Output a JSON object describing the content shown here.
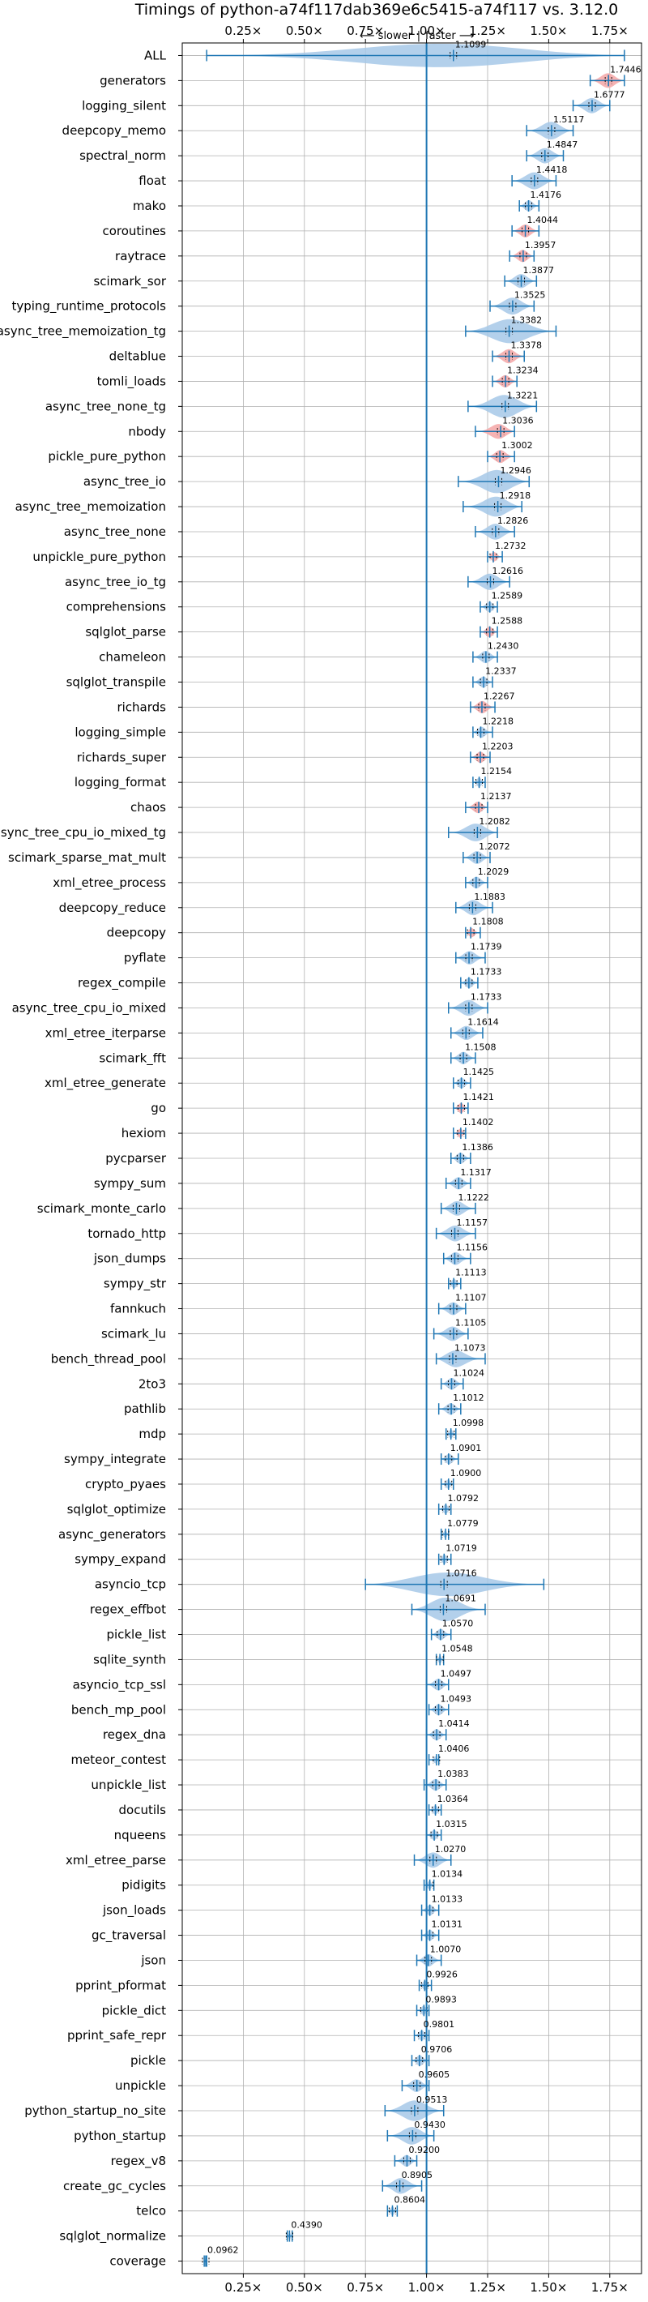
{
  "chart_data": {
    "type": "violin",
    "title": "Timings of python-a74f117dab369e6c5415-a74f117 vs. 3.12.0",
    "annotation_left": "⟵ slower",
    "annotation_sep": "|",
    "annotation_right": "faster ⟶",
    "xlim": [
      0.0,
      1.88
    ],
    "xticks": [
      0.25,
      0.5,
      0.75,
      1.0,
      1.25,
      1.5,
      1.75
    ],
    "xtick_labels": [
      "0.25×",
      "0.50×",
      "0.75×",
      "1.00×",
      "1.25×",
      "1.50×",
      "1.75×"
    ],
    "reference_line": 1.0,
    "grid": true,
    "colors": {
      "blue": "#1f77b4",
      "violin_blue": "#a6c8e8",
      "violin_red": "#f4a6a6"
    },
    "categories": [
      "ALL",
      "generators",
      "logging_silent",
      "deepcopy_memo",
      "spectral_norm",
      "float",
      "mako",
      "coroutines",
      "raytrace",
      "scimark_sor",
      "typing_runtime_protocols",
      "async_tree_memoization_tg",
      "deltablue",
      "tomli_loads",
      "async_tree_none_tg",
      "nbody",
      "pickle_pure_python",
      "async_tree_io",
      "async_tree_memoization",
      "async_tree_none",
      "unpickle_pure_python",
      "async_tree_io_tg",
      "comprehensions",
      "sqlglot_parse",
      "chameleon",
      "sqlglot_transpile",
      "richards",
      "logging_simple",
      "richards_super",
      "logging_format",
      "chaos",
      "async_tree_cpu_io_mixed_tg",
      "scimark_sparse_mat_mult",
      "xml_etree_process",
      "deepcopy_reduce",
      "deepcopy",
      "pyflate",
      "regex_compile",
      "async_tree_cpu_io_mixed",
      "xml_etree_iterparse",
      "scimark_fft",
      "xml_etree_generate",
      "go",
      "hexiom",
      "pycparser",
      "sympy_sum",
      "scimark_monte_carlo",
      "tornado_http",
      "json_dumps",
      "sympy_str",
      "fannkuch",
      "scimark_lu",
      "bench_thread_pool",
      "2to3",
      "pathlib",
      "mdp",
      "sympy_integrate",
      "crypto_pyaes",
      "sqlglot_optimize",
      "async_generators",
      "sympy_expand",
      "asyncio_tcp",
      "regex_effbot",
      "pickle_list",
      "sqlite_synth",
      "asyncio_tcp_ssl",
      "bench_mp_pool",
      "regex_dna",
      "meteor_contest",
      "unpickle_list",
      "docutils",
      "nqueens",
      "xml_etree_parse",
      "pidigits",
      "json_loads",
      "gc_traversal",
      "json",
      "pprint_pformat",
      "pickle_dict",
      "pprint_safe_repr",
      "pickle",
      "unpickle",
      "python_startup_no_site",
      "python_startup",
      "regex_v8",
      "create_gc_cycles",
      "telco",
      "sqlglot_normalize",
      "coverage"
    ],
    "values": [
      1.1099,
      1.7446,
      1.6777,
      1.5117,
      1.4847,
      1.4418,
      1.4176,
      1.4044,
      1.3957,
      1.3877,
      1.3525,
      1.3382,
      1.3378,
      1.3234,
      1.3221,
      1.3036,
      1.3002,
      1.2946,
      1.2918,
      1.2826,
      1.2732,
      1.2616,
      1.2589,
      1.2588,
      1.243,
      1.2337,
      1.2267,
      1.2218,
      1.2203,
      1.2154,
      1.2137,
      1.2082,
      1.2072,
      1.2029,
      1.1883,
      1.1808,
      1.1739,
      1.1733,
      1.1733,
      1.1614,
      1.1508,
      1.1425,
      1.1421,
      1.1402,
      1.1386,
      1.1317,
      1.1222,
      1.1157,
      1.1156,
      1.1113,
      1.1107,
      1.1105,
      1.1073,
      1.1024,
      1.1012,
      1.0998,
      1.0901,
      1.09,
      1.0792,
      1.0779,
      1.0719,
      1.0716,
      1.0691,
      1.057,
      1.0548,
      1.0497,
      1.0493,
      1.0414,
      1.0406,
      1.0383,
      1.0364,
      1.0315,
      1.027,
      1.0134,
      1.0133,
      1.0131,
      1.007,
      0.9926,
      0.9893,
      0.9801,
      0.9706,
      0.9605,
      0.9513,
      0.943,
      0.92,
      0.8905,
      0.8604,
      0.439,
      0.0962
    ],
    "value_labels": [
      "1.1099",
      "1.7446",
      "1.6777",
      "1.5117",
      "1.4847",
      "1.4418",
      "1.4176",
      "1.4044",
      "1.3957",
      "1.3877",
      "1.3525",
      "1.3382",
      "1.3378",
      "1.3234",
      "1.3221",
      "1.3036",
      "1.3002",
      "1.2946",
      "1.2918",
      "1.2826",
      "1.2732",
      "1.2616",
      "1.2589",
      "1.2588",
      "1.2430",
      "1.2337",
      "1.2267",
      "1.2218",
      "1.2203",
      "1.2154",
      "1.2137",
      "1.2082",
      "1.2072",
      "1.2029",
      "1.1883",
      "1.1808",
      "1.1739",
      "1.1733",
      "1.1733",
      "1.1614",
      "1.1508",
      "1.1425",
      "1.1421",
      "1.1402",
      "1.1386",
      "1.1317",
      "1.1222",
      "1.1157",
      "1.1156",
      "1.1113",
      "1.1107",
      "1.1105",
      "1.1073",
      "1.1024",
      "1.1012",
      "1.0998",
      "1.0901",
      "1.0900",
      "1.0792",
      "1.0779",
      "1.0719",
      "1.0716",
      "1.0691",
      "1.0570",
      "1.0548",
      "1.0497",
      "1.0493",
      "1.0414",
      "1.0406",
      "1.0383",
      "1.0364",
      "1.0315",
      "1.0270",
      "1.0134",
      "1.0133",
      "1.0131",
      "1.0070",
      "0.9926",
      "0.9893",
      "0.9801",
      "0.9706",
      "0.9605",
      "0.9513",
      "0.9430",
      "0.9200",
      "0.8905",
      "0.8604",
      "0.4390",
      "0.0962"
    ],
    "ranges": [
      [
        0.1,
        1.81
      ],
      [
        1.67,
        1.81
      ],
      [
        1.6,
        1.75
      ],
      [
        1.41,
        1.6
      ],
      [
        1.41,
        1.56
      ],
      [
        1.35,
        1.53
      ],
      [
        1.38,
        1.46
      ],
      [
        1.35,
        1.46
      ],
      [
        1.34,
        1.44
      ],
      [
        1.32,
        1.45
      ],
      [
        1.26,
        1.44
      ],
      [
        1.16,
        1.53
      ],
      [
        1.27,
        1.4
      ],
      [
        1.27,
        1.37
      ],
      [
        1.17,
        1.45
      ],
      [
        1.2,
        1.36
      ],
      [
        1.25,
        1.36
      ],
      [
        1.13,
        1.42
      ],
      [
        1.15,
        1.39
      ],
      [
        1.2,
        1.36
      ],
      [
        1.25,
        1.31
      ],
      [
        1.17,
        1.34
      ],
      [
        1.22,
        1.29
      ],
      [
        1.22,
        1.29
      ],
      [
        1.19,
        1.29
      ],
      [
        1.19,
        1.27
      ],
      [
        1.18,
        1.28
      ],
      [
        1.19,
        1.27
      ],
      [
        1.18,
        1.26
      ],
      [
        1.19,
        1.24
      ],
      [
        1.16,
        1.25
      ],
      [
        1.09,
        1.29
      ],
      [
        1.15,
        1.26
      ],
      [
        1.16,
        1.25
      ],
      [
        1.12,
        1.27
      ],
      [
        1.16,
        1.22
      ],
      [
        1.12,
        1.24
      ],
      [
        1.14,
        1.21
      ],
      [
        1.09,
        1.25
      ],
      [
        1.1,
        1.23
      ],
      [
        1.1,
        1.2
      ],
      [
        1.11,
        1.18
      ],
      [
        1.11,
        1.17
      ],
      [
        1.11,
        1.16
      ],
      [
        1.1,
        1.18
      ],
      [
        1.08,
        1.18
      ],
      [
        1.06,
        1.2
      ],
      [
        1.04,
        1.2
      ],
      [
        1.07,
        1.18
      ],
      [
        1.09,
        1.14
      ],
      [
        1.05,
        1.16
      ],
      [
        1.03,
        1.17
      ],
      [
        1.04,
        1.24
      ],
      [
        1.06,
        1.15
      ],
      [
        1.05,
        1.14
      ],
      [
        1.08,
        1.12
      ],
      [
        1.06,
        1.13
      ],
      [
        1.06,
        1.11
      ],
      [
        1.05,
        1.1
      ],
      [
        1.06,
        1.09
      ],
      [
        1.05,
        1.1
      ],
      [
        0.75,
        1.48
      ],
      [
        0.94,
        1.24
      ],
      [
        1.02,
        1.1
      ],
      [
        1.04,
        1.07
      ],
      [
        1.0,
        1.09
      ],
      [
        1.01,
        1.09
      ],
      [
        1.0,
        1.08
      ],
      [
        1.01,
        1.05
      ],
      [
        0.99,
        1.08
      ],
      [
        1.01,
        1.06
      ],
      [
        1.0,
        1.06
      ],
      [
        0.95,
        1.1
      ],
      [
        0.99,
        1.03
      ],
      [
        0.98,
        1.05
      ],
      [
        0.98,
        1.05
      ],
      [
        0.96,
        1.06
      ],
      [
        0.97,
        1.02
      ],
      [
        0.96,
        1.01
      ],
      [
        0.95,
        1.01
      ],
      [
        0.94,
        1.01
      ],
      [
        0.9,
        1.01
      ],
      [
        0.83,
        1.07
      ],
      [
        0.84,
        1.03
      ],
      [
        0.87,
        0.96
      ],
      [
        0.82,
        0.98
      ],
      [
        0.84,
        0.88
      ],
      [
        0.43,
        0.45
      ],
      [
        0.09,
        0.1
      ]
    ],
    "red": [
      "generators",
      "coroutines",
      "raytrace",
      "deltablue",
      "tomli_loads",
      "nbody",
      "pickle_pure_python",
      "unpickle_pure_python",
      "sqlglot_parse",
      "richards",
      "richards_super",
      "chaos",
      "deepcopy",
      "go",
      "hexiom"
    ]
  }
}
